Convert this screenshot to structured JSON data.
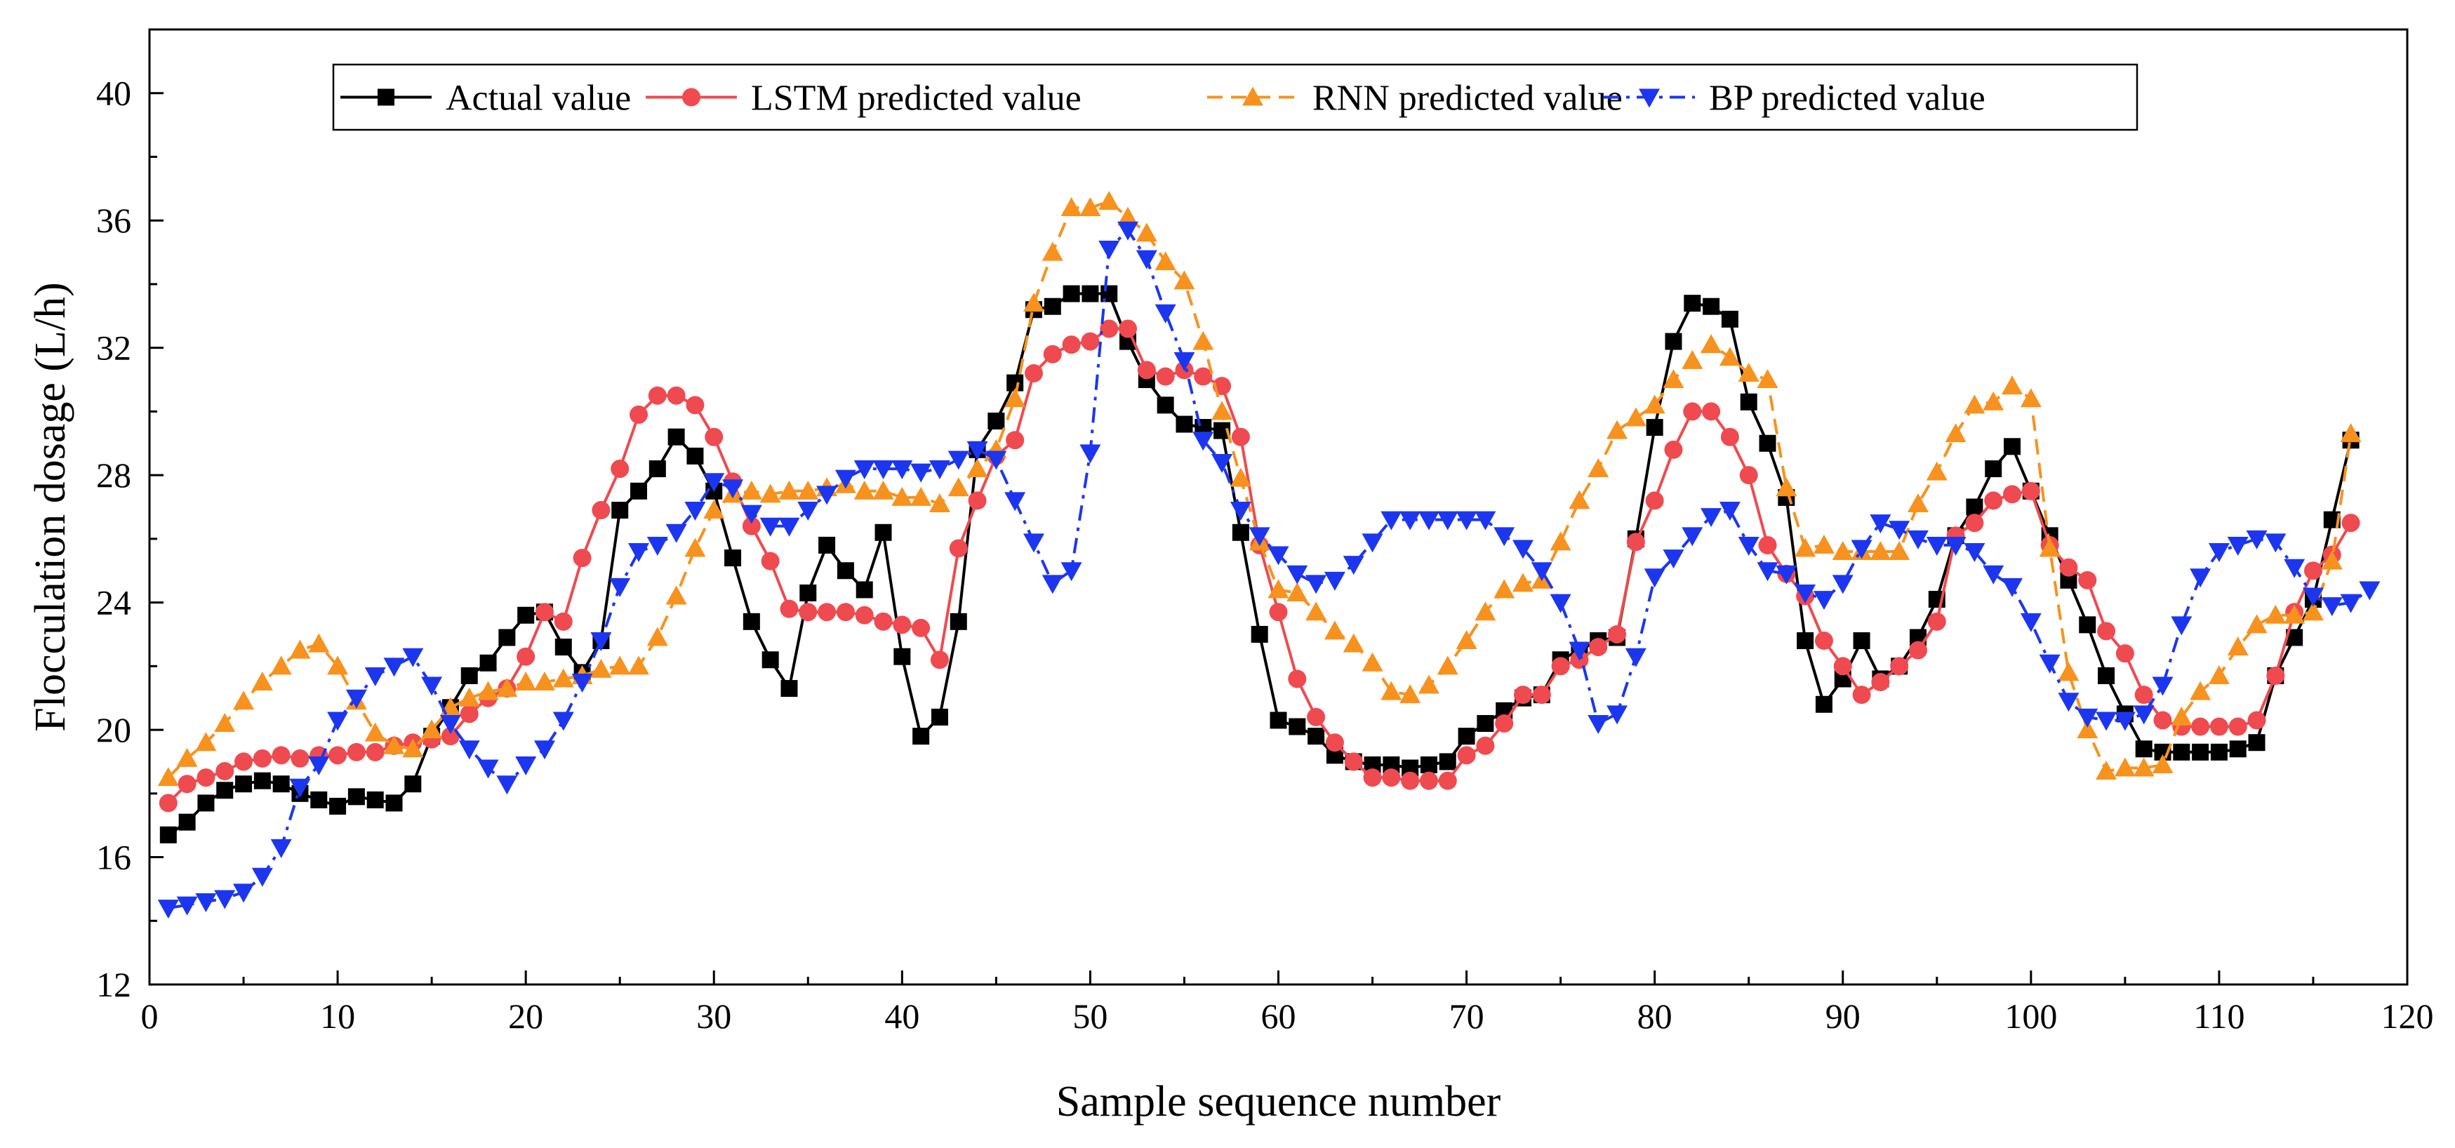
{
  "chart_data": {
    "type": "line",
    "title": "",
    "xlabel": "Sample sequence number",
    "ylabel": "Flocculation dosage (L/h)",
    "xlim": [
      0,
      120
    ],
    "ylim": [
      12,
      42
    ],
    "x_ticks": [
      0,
      10,
      20,
      30,
      40,
      50,
      60,
      70,
      80,
      90,
      100,
      110,
      120
    ],
    "y_ticks": [
      12,
      16,
      20,
      24,
      28,
      32,
      36,
      40
    ],
    "grid": false,
    "legend_position": "top",
    "series": [
      {
        "name": "Actual value",
        "color": "#000000",
        "marker": "square",
        "dash": "solid",
        "values": [
          16.7,
          17.1,
          17.7,
          18.1,
          18.3,
          18.4,
          18.3,
          18.0,
          17.8,
          17.6,
          17.9,
          17.8,
          17.7,
          18.3,
          19.8,
          20.7,
          21.7,
          22.1,
          22.9,
          23.6,
          23.7,
          22.6,
          21.8,
          22.8,
          26.9,
          27.5,
          28.2,
          29.2,
          28.6,
          27.5,
          25.4,
          23.4,
          22.2,
          21.3,
          24.3,
          25.8,
          25.0,
          24.4,
          26.2,
          22.3,
          19.8,
          20.4,
          23.4,
          28.8,
          29.7,
          30.9,
          33.2,
          33.3,
          33.7,
          33.7,
          33.7,
          32.2,
          31.0,
          30.2,
          29.6,
          29.5,
          29.4,
          26.2,
          23.0,
          20.3,
          20.1,
          19.8,
          19.2,
          19.0,
          18.9,
          18.9,
          18.8,
          18.9,
          19.0,
          19.8,
          20.2,
          20.6,
          21.0,
          21.1,
          22.2,
          22.5,
          22.8,
          22.9,
          26.0,
          29.5,
          32.2,
          33.4,
          33.3,
          32.9,
          30.3,
          29.0,
          27.3,
          22.8,
          20.8,
          21.6,
          22.8,
          21.6,
          22.0,
          22.9,
          24.1,
          26.1,
          27.0,
          28.2,
          28.9,
          27.5,
          26.1,
          24.7,
          23.3,
          21.7,
          20.5,
          19.4,
          19.3,
          19.3,
          19.3,
          19.3,
          19.4,
          19.6,
          21.7,
          22.9,
          24.1,
          26.6,
          29.1
        ]
      },
      {
        "name": "LSTM predicted value",
        "color": "#ef4a4f",
        "marker": "circle",
        "dash": "solid",
        "values": [
          17.7,
          18.3,
          18.5,
          18.7,
          19.0,
          19.1,
          19.2,
          19.1,
          19.2,
          19.2,
          19.3,
          19.3,
          19.5,
          19.6,
          19.7,
          19.8,
          20.5,
          21.0,
          21.3,
          22.3,
          23.7,
          23.4,
          25.4,
          26.9,
          28.2,
          29.9,
          30.5,
          30.5,
          30.2,
          29.2,
          27.8,
          26.4,
          25.3,
          23.8,
          23.7,
          23.7,
          23.7,
          23.6,
          23.4,
          23.3,
          23.2,
          22.2,
          25.7,
          27.2,
          28.6,
          29.1,
          31.2,
          31.8,
          32.1,
          32.2,
          32.6,
          32.6,
          31.3,
          31.1,
          31.3,
          31.1,
          30.8,
          29.2,
          25.8,
          23.7,
          21.6,
          20.4,
          19.6,
          19.0,
          18.5,
          18.5,
          18.4,
          18.4,
          18.4,
          19.2,
          19.5,
          20.2,
          21.1,
          21.1,
          22.0,
          22.2,
          22.6,
          23.0,
          25.9,
          27.2,
          28.8,
          30.0,
          30.0,
          29.2,
          28.0,
          25.8,
          24.9,
          24.2,
          22.8,
          22.0,
          21.1,
          21.5,
          22.0,
          22.5,
          23.4,
          26.1,
          26.5,
          27.2,
          27.4,
          27.5,
          25.8,
          25.1,
          24.7,
          23.1,
          22.4,
          21.1,
          20.3,
          20.1,
          20.1,
          20.1,
          20.1,
          20.3,
          21.7,
          23.7,
          25.0,
          25.5,
          26.5
        ]
      },
      {
        "name": "RNN predicted value",
        "color": "#f7921e",
        "marker": "triangle-up",
        "dash": "dash",
        "values": [
          18.5,
          19.1,
          19.6,
          20.2,
          20.9,
          21.5,
          22.0,
          22.5,
          22.7,
          22.0,
          20.9,
          19.9,
          19.5,
          19.4,
          20.0,
          20.7,
          21.0,
          21.2,
          21.3,
          21.5,
          21.5,
          21.6,
          21.7,
          21.9,
          22.0,
          22.0,
          22.9,
          24.2,
          25.7,
          26.9,
          27.4,
          27.5,
          27.4,
          27.5,
          27.5,
          27.6,
          27.7,
          27.5,
          27.5,
          27.3,
          27.3,
          27.1,
          27.6,
          28.2,
          28.8,
          30.4,
          33.4,
          35.0,
          36.4,
          36.4,
          36.6,
          36.1,
          35.6,
          34.7,
          34.1,
          32.2,
          30.0,
          27.9,
          25.9,
          24.4,
          24.3,
          23.7,
          23.1,
          22.7,
          22.1,
          21.2,
          21.1,
          21.4,
          22.0,
          22.8,
          23.7,
          24.4,
          24.6,
          24.7,
          25.9,
          27.2,
          28.2,
          29.4,
          29.8,
          30.2,
          31.0,
          31.6,
          32.1,
          31.7,
          31.2,
          31.0,
          27.6,
          25.7,
          25.8,
          25.6,
          25.6,
          25.6,
          25.6,
          27.1,
          28.1,
          29.3,
          30.2,
          30.3,
          30.8,
          30.4,
          25.7,
          21.8,
          20.0,
          18.7,
          18.8,
          18.8,
          18.9,
          20.4,
          21.2,
          21.7,
          22.6,
          23.3,
          23.6,
          23.6,
          23.7,
          25.3,
          29.3
        ]
      },
      {
        "name": "BP predicted value",
        "color": "#1c36f0",
        "marker": "triangle-down",
        "dash": "dashdot",
        "values": [
          14.4,
          14.5,
          14.6,
          14.7,
          14.9,
          15.4,
          16.3,
          18.2,
          18.9,
          20.3,
          21.0,
          21.7,
          22.0,
          22.3,
          21.4,
          20.2,
          19.4,
          18.8,
          18.3,
          18.9,
          19.4,
          20.3,
          21.5,
          22.8,
          24.5,
          25.6,
          25.8,
          26.2,
          26.9,
          27.8,
          27.6,
          26.8,
          26.4,
          26.4,
          26.9,
          27.4,
          27.9,
          28.2,
          28.2,
          28.2,
          28.1,
          28.2,
          28.5,
          28.8,
          28.5,
          27.2,
          25.9,
          24.6,
          25.0,
          28.7,
          35.1,
          35.7,
          34.8,
          33.1,
          31.6,
          29.1,
          28.4,
          26.9,
          26.1,
          25.5,
          24.9,
          24.6,
          24.7,
          25.2,
          25.9,
          26.6,
          26.6,
          26.6,
          26.6,
          26.6,
          26.6,
          26.1,
          25.7,
          25.0,
          24.0,
          22.5,
          20.2,
          20.5,
          22.3,
          24.8,
          25.4,
          26.1,
          26.7,
          26.9,
          25.8,
          25.0,
          24.9,
          24.3,
          24.1,
          24.6,
          25.7,
          26.5,
          26.3,
          26.0,
          25.8,
          25.8,
          25.6,
          24.9,
          24.5,
          23.4,
          22.1,
          20.9,
          20.4,
          20.3,
          20.3,
          20.5,
          21.4,
          23.3,
          24.8,
          25.6,
          25.8,
          26.0,
          25.9,
          25.1,
          24.2,
          23.9,
          24.0,
          24.4
        ]
      }
    ]
  }
}
